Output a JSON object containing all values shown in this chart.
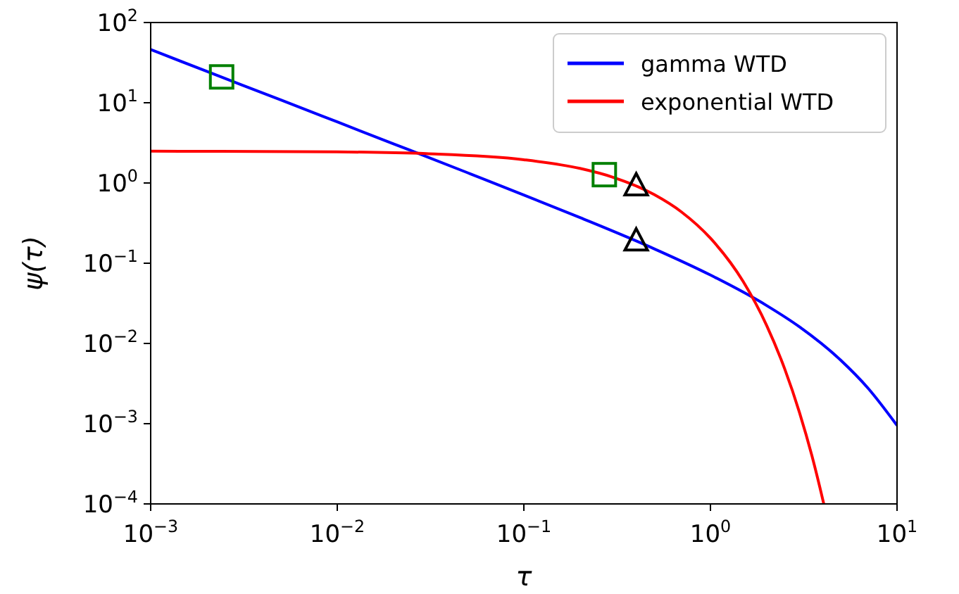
{
  "chart_data": {
    "type": "line",
    "xlabel": "τ",
    "ylabel": "ψ(τ)",
    "log": "xy",
    "grid": false,
    "legend": "top right",
    "line_style": "solid",
    "xlim": [
      0.001,
      10
    ],
    "ylim": [
      0.0001,
      100
    ],
    "xticks": [
      {
        "value": 0.001,
        "label": "10$^{−3}$"
      },
      {
        "value": 0.01,
        "label": "10$^{−2}$"
      },
      {
        "value": 0.1,
        "label": "10$^{−1}$"
      },
      {
        "value": 1,
        "label": "10$^{0}$"
      },
      {
        "value": 10,
        "label": "10$^{1}$"
      }
    ],
    "yticks": [
      {
        "value": 0.0001,
        "label": "10$^{−4}$"
      },
      {
        "value": 0.001,
        "label": "10$^{−3}$"
      },
      {
        "value": 0.01,
        "label": "10$^{−2}$"
      },
      {
        "value": 0.1,
        "label": "10$^{−1}$"
      },
      {
        "value": 1,
        "label": "10$^{0}$"
      },
      {
        "value": 10,
        "label": "10$^{1}$"
      },
      {
        "value": 100,
        "label": "10$^{2}$"
      }
    ],
    "series": [
      {
        "name": "gamma WTD",
        "color": "#0000ff",
        "x": [
          0.001,
          0.002,
          0.005,
          0.01,
          0.02,
          0.05,
          0.1,
          0.2,
          0.5,
          1,
          2,
          3,
          5,
          7,
          10
        ],
        "values": [
          46,
          24.6,
          10.8,
          5.77,
          3.08,
          1.34,
          0.709,
          0.37,
          0.151,
          0.0712,
          0.0297,
          0.0161,
          0.00616,
          0.00276,
          0.00095
        ]
      },
      {
        "name": "exponential WTD",
        "color": "#ff0000",
        "x": [
          0.001,
          0.01,
          0.03,
          0.1,
          0.2,
          0.3,
          0.5,
          0.7,
          1,
          1.5,
          2,
          2.5,
          3,
          3.5,
          4,
          4.05
        ],
        "values": [
          2.49,
          2.44,
          2.32,
          1.95,
          1.52,
          1.18,
          0.716,
          0.435,
          0.205,
          0.0588,
          0.0168,
          0.00482,
          0.00138,
          0.000396,
          0.000113,
          0.0001
        ]
      },
      {
        "type": "scatter",
        "marker": "square",
        "color": "#008000",
        "x": [
          0.0024,
          0.27
        ],
        "values": [
          21,
          1.27
        ]
      },
      {
        "type": "scatter",
        "marker": "triangle",
        "color": "#000000",
        "x": [
          0.4,
          0.4
        ],
        "values": [
          0.189,
          0.92
        ]
      }
    ]
  }
}
